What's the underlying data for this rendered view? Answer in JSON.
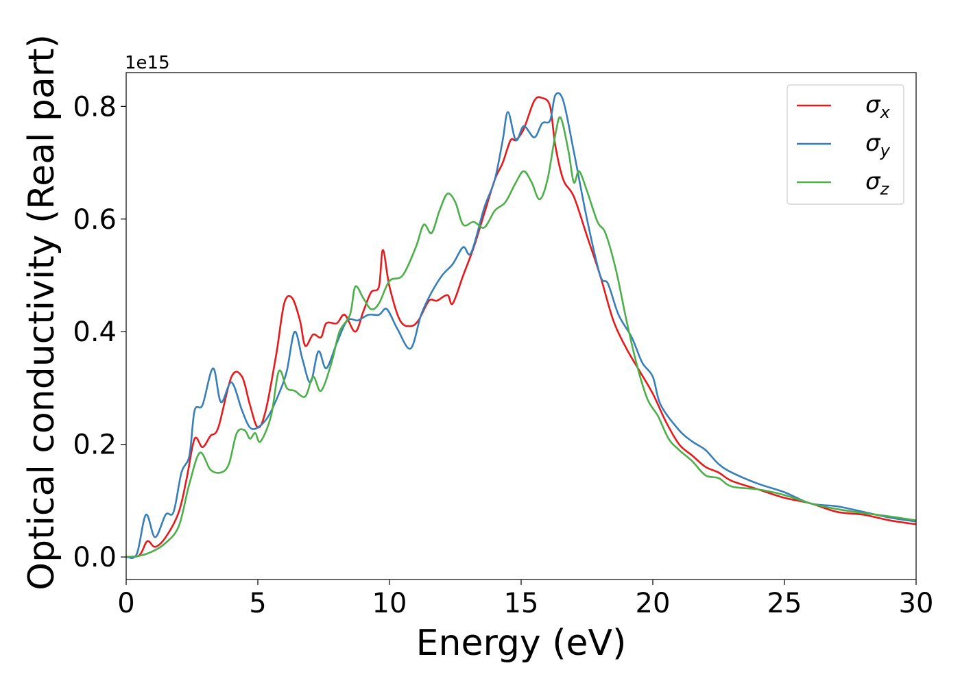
{
  "chart_data": {
    "type": "line",
    "xlabel": "Energy (eV)",
    "ylabel": "Optical conductivity (Real part)",
    "y_offset_label": "1e15",
    "xlim": [
      0,
      30
    ],
    "ylim": [
      -0.04,
      0.86
    ],
    "x_ticks": [
      0,
      5,
      10,
      15,
      20,
      25,
      30
    ],
    "x_tick_labels": [
      "0",
      "5",
      "10",
      "15",
      "20",
      "25",
      "30"
    ],
    "y_ticks": [
      0.0,
      0.2,
      0.4,
      0.6,
      0.8
    ],
    "y_tick_labels": [
      "0.0",
      "0.2",
      "0.4",
      "0.6",
      "0.8"
    ],
    "grid": false,
    "legend_position": "top-right",
    "series": [
      {
        "name": "σx",
        "legend_symbol": "σ",
        "legend_subscript": "x",
        "color": "#e41a1c",
        "points": [
          [
            0,
            0
          ],
          [
            0.5,
            0.003
          ],
          [
            0.8,
            0.028
          ],
          [
            1.1,
            0.018
          ],
          [
            1.5,
            0.035
          ],
          [
            2.0,
            0.08
          ],
          [
            2.3,
            0.14
          ],
          [
            2.6,
            0.21
          ],
          [
            2.9,
            0.195
          ],
          [
            3.2,
            0.215
          ],
          [
            3.5,
            0.23
          ],
          [
            4.0,
            0.32
          ],
          [
            4.4,
            0.32
          ],
          [
            4.7,
            0.27
          ],
          [
            5.0,
            0.23
          ],
          [
            5.3,
            0.26
          ],
          [
            5.7,
            0.36
          ],
          [
            6.0,
            0.45
          ],
          [
            6.3,
            0.46
          ],
          [
            6.6,
            0.42
          ],
          [
            6.8,
            0.375
          ],
          [
            7.1,
            0.395
          ],
          [
            7.4,
            0.39
          ],
          [
            7.6,
            0.415
          ],
          [
            8.0,
            0.415
          ],
          [
            8.3,
            0.43
          ],
          [
            8.7,
            0.4
          ],
          [
            9.0,
            0.435
          ],
          [
            9.3,
            0.47
          ],
          [
            9.6,
            0.48
          ],
          [
            9.75,
            0.545
          ],
          [
            10.0,
            0.48
          ],
          [
            10.4,
            0.42
          ],
          [
            10.8,
            0.41
          ],
          [
            11.1,
            0.42
          ],
          [
            11.5,
            0.455
          ],
          [
            11.8,
            0.455
          ],
          [
            12.2,
            0.465
          ],
          [
            12.4,
            0.45
          ],
          [
            12.8,
            0.5
          ],
          [
            13.2,
            0.55
          ],
          [
            13.6,
            0.61
          ],
          [
            14.0,
            0.67
          ],
          [
            14.3,
            0.7
          ],
          [
            14.6,
            0.74
          ],
          [
            14.8,
            0.74
          ],
          [
            15.1,
            0.76
          ],
          [
            15.5,
            0.81
          ],
          [
            15.8,
            0.815
          ],
          [
            16.1,
            0.8
          ],
          [
            16.3,
            0.73
          ],
          [
            16.6,
            0.67
          ],
          [
            17.0,
            0.64
          ],
          [
            17.5,
            0.57
          ],
          [
            18.0,
            0.5
          ],
          [
            18.5,
            0.42
          ],
          [
            19.0,
            0.37
          ],
          [
            19.5,
            0.33
          ],
          [
            20.0,
            0.29
          ],
          [
            20.5,
            0.24
          ],
          [
            21.0,
            0.2
          ],
          [
            21.5,
            0.18
          ],
          [
            22.0,
            0.16
          ],
          [
            22.5,
            0.15
          ],
          [
            23.0,
            0.135
          ],
          [
            24.0,
            0.12
          ],
          [
            25.0,
            0.105
          ],
          [
            26.0,
            0.095
          ],
          [
            27.0,
            0.08
          ],
          [
            28.0,
            0.075
          ],
          [
            29.0,
            0.065
          ],
          [
            30.0,
            0.058
          ]
        ]
      },
      {
        "name": "σy",
        "legend_symbol": "σ",
        "legend_subscript": "y",
        "color": "#377eb8",
        "points": [
          [
            0,
            0
          ],
          [
            0.4,
            0.005
          ],
          [
            0.75,
            0.075
          ],
          [
            1.1,
            0.035
          ],
          [
            1.5,
            0.075
          ],
          [
            1.8,
            0.08
          ],
          [
            2.1,
            0.15
          ],
          [
            2.4,
            0.18
          ],
          [
            2.6,
            0.26
          ],
          [
            2.9,
            0.27
          ],
          [
            3.3,
            0.335
          ],
          [
            3.6,
            0.275
          ],
          [
            4.0,
            0.31
          ],
          [
            4.4,
            0.26
          ],
          [
            4.7,
            0.23
          ],
          [
            5.0,
            0.23
          ],
          [
            5.4,
            0.25
          ],
          [
            5.8,
            0.29
          ],
          [
            6.1,
            0.33
          ],
          [
            6.4,
            0.4
          ],
          [
            6.7,
            0.35
          ],
          [
            7.0,
            0.31
          ],
          [
            7.3,
            0.365
          ],
          [
            7.6,
            0.335
          ],
          [
            8.0,
            0.38
          ],
          [
            8.4,
            0.42
          ],
          [
            8.8,
            0.42
          ],
          [
            9.2,
            0.43
          ],
          [
            9.6,
            0.43
          ],
          [
            9.9,
            0.44
          ],
          [
            10.3,
            0.405
          ],
          [
            10.8,
            0.37
          ],
          [
            11.2,
            0.43
          ],
          [
            11.6,
            0.47
          ],
          [
            12.0,
            0.5
          ],
          [
            12.4,
            0.52
          ],
          [
            12.8,
            0.55
          ],
          [
            13.1,
            0.54
          ],
          [
            13.6,
            0.62
          ],
          [
            14.0,
            0.67
          ],
          [
            14.3,
            0.74
          ],
          [
            14.5,
            0.79
          ],
          [
            14.8,
            0.74
          ],
          [
            15.1,
            0.765
          ],
          [
            15.5,
            0.745
          ],
          [
            15.8,
            0.77
          ],
          [
            16.1,
            0.775
          ],
          [
            16.3,
            0.82
          ],
          [
            16.6,
            0.81
          ],
          [
            17.0,
            0.72
          ],
          [
            17.5,
            0.6
          ],
          [
            18.0,
            0.5
          ],
          [
            18.3,
            0.485
          ],
          [
            18.7,
            0.43
          ],
          [
            19.2,
            0.39
          ],
          [
            19.6,
            0.345
          ],
          [
            20.0,
            0.32
          ],
          [
            20.3,
            0.27
          ],
          [
            21.0,
            0.225
          ],
          [
            21.5,
            0.205
          ],
          [
            22.0,
            0.19
          ],
          [
            22.5,
            0.165
          ],
          [
            23.0,
            0.15
          ],
          [
            24.0,
            0.13
          ],
          [
            25.0,
            0.115
          ],
          [
            26.0,
            0.095
          ],
          [
            27.0,
            0.09
          ],
          [
            28.0,
            0.08
          ],
          [
            29.0,
            0.07
          ],
          [
            30.0,
            0.063
          ]
        ]
      },
      {
        "name": "σz",
        "legend_symbol": "σ",
        "legend_subscript": "z",
        "color": "#4daf4a",
        "points": [
          [
            0,
            0
          ],
          [
            0.5,
            0.002
          ],
          [
            1.0,
            0.01
          ],
          [
            1.5,
            0.025
          ],
          [
            2.0,
            0.055
          ],
          [
            2.4,
            0.13
          ],
          [
            2.8,
            0.185
          ],
          [
            3.2,
            0.155
          ],
          [
            3.6,
            0.15
          ],
          [
            3.9,
            0.165
          ],
          [
            4.2,
            0.22
          ],
          [
            4.5,
            0.225
          ],
          [
            4.7,
            0.21
          ],
          [
            4.9,
            0.22
          ],
          [
            5.1,
            0.205
          ],
          [
            5.5,
            0.25
          ],
          [
            5.8,
            0.33
          ],
          [
            6.1,
            0.3
          ],
          [
            6.4,
            0.295
          ],
          [
            6.8,
            0.285
          ],
          [
            7.1,
            0.32
          ],
          [
            7.4,
            0.295
          ],
          [
            7.8,
            0.345
          ],
          [
            8.1,
            0.4
          ],
          [
            8.5,
            0.43
          ],
          [
            8.7,
            0.48
          ],
          [
            9.0,
            0.46
          ],
          [
            9.3,
            0.44
          ],
          [
            9.6,
            0.45
          ],
          [
            10.0,
            0.49
          ],
          [
            10.5,
            0.5
          ],
          [
            11.0,
            0.55
          ],
          [
            11.3,
            0.59
          ],
          [
            11.6,
            0.575
          ],
          [
            11.9,
            0.615
          ],
          [
            12.2,
            0.645
          ],
          [
            12.5,
            0.63
          ],
          [
            12.8,
            0.59
          ],
          [
            13.2,
            0.595
          ],
          [
            13.6,
            0.585
          ],
          [
            14.0,
            0.615
          ],
          [
            14.4,
            0.63
          ],
          [
            14.8,
            0.665
          ],
          [
            15.1,
            0.685
          ],
          [
            15.4,
            0.665
          ],
          [
            15.7,
            0.635
          ],
          [
            16.0,
            0.67
          ],
          [
            16.3,
            0.75
          ],
          [
            16.5,
            0.78
          ],
          [
            16.8,
            0.72
          ],
          [
            17.0,
            0.665
          ],
          [
            17.2,
            0.685
          ],
          [
            17.5,
            0.65
          ],
          [
            17.9,
            0.595
          ],
          [
            18.2,
            0.575
          ],
          [
            18.6,
            0.51
          ],
          [
            19.0,
            0.42
          ],
          [
            19.4,
            0.34
          ],
          [
            19.8,
            0.28
          ],
          [
            20.2,
            0.25
          ],
          [
            20.6,
            0.21
          ],
          [
            21.0,
            0.19
          ],
          [
            21.5,
            0.17
          ],
          [
            22.0,
            0.145
          ],
          [
            22.5,
            0.14
          ],
          [
            23.0,
            0.125
          ],
          [
            24.0,
            0.12
          ],
          [
            25.0,
            0.11
          ],
          [
            26.0,
            0.095
          ],
          [
            27.0,
            0.085
          ],
          [
            28.0,
            0.078
          ],
          [
            29.0,
            0.072
          ],
          [
            30.0,
            0.065
          ]
        ]
      }
    ]
  }
}
